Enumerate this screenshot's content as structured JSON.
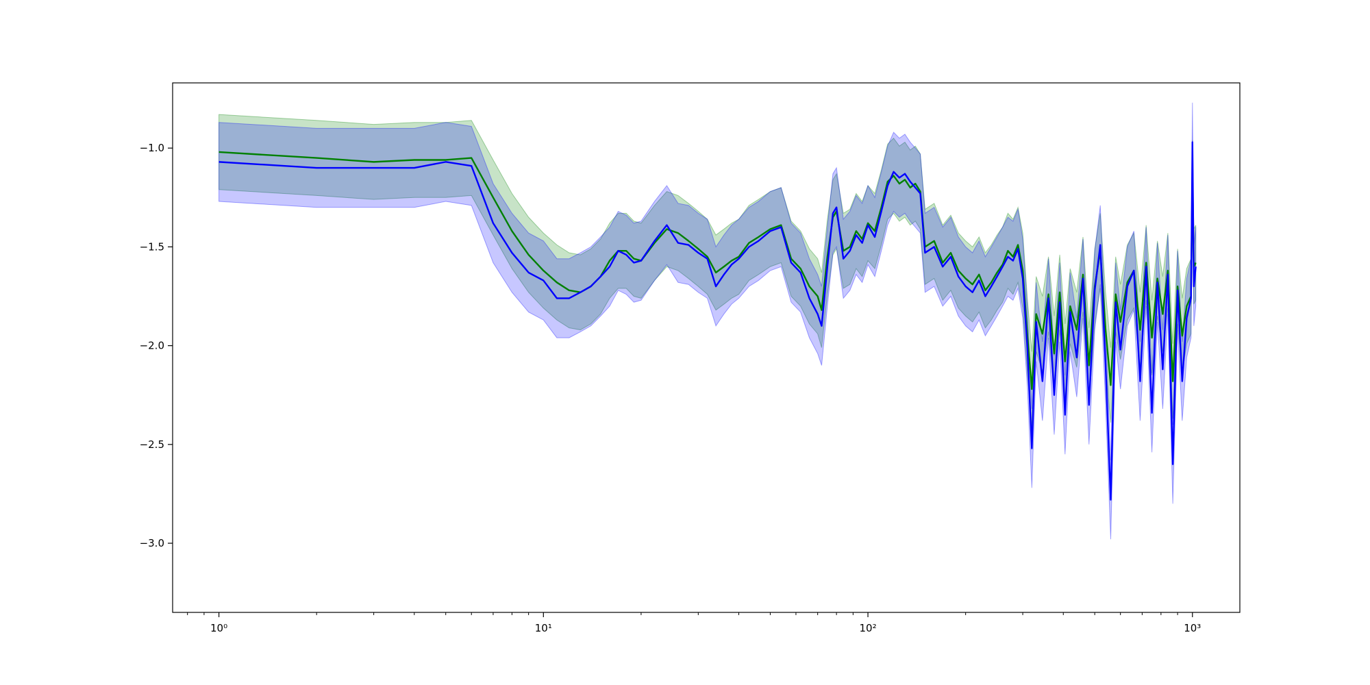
{
  "chart_data": {
    "type": "line",
    "title": "",
    "xlabel": "",
    "ylabel": "",
    "xscale": "log",
    "xlim": [
      0.72,
      1400
    ],
    "ylim": [
      -3.35,
      -0.67
    ],
    "grid": false,
    "legend": "none",
    "x_ticks": [
      {
        "value": 1,
        "label": "10⁰"
      },
      {
        "value": 10,
        "label": "10¹"
      },
      {
        "value": 100,
        "label": "10²"
      },
      {
        "value": 1000,
        "label": "10³"
      }
    ],
    "y_ticks": [
      {
        "value": -1.0,
        "label": "−1.0"
      },
      {
        "value": -1.5,
        "label": "−1.5"
      },
      {
        "value": -2.0,
        "label": "−2.0"
      },
      {
        "value": -2.5,
        "label": "−2.5"
      },
      {
        "value": -3.0,
        "label": "−3.0"
      }
    ],
    "series": [
      {
        "color": "#008000",
        "band_color": "#008000",
        "band_opacity": 0.22,
        "band_halfwidth": 0.19,
        "x": [
          1,
          2,
          3,
          4,
          5,
          6,
          7,
          8,
          9,
          10,
          11,
          12,
          13,
          14,
          15,
          16,
          17,
          18,
          19,
          20,
          22,
          24,
          26,
          28,
          30,
          32,
          34,
          36,
          38,
          40,
          43,
          46,
          50,
          54,
          58,
          62,
          66,
          70,
          72,
          75,
          78,
          80,
          84,
          88,
          92,
          96,
          100,
          105,
          110,
          115,
          120,
          125,
          130,
          135,
          140,
          145,
          150,
          160,
          170,
          180,
          190,
          200,
          210,
          220,
          230,
          240,
          250,
          260,
          270,
          280,
          290,
          300,
          310,
          320,
          330,
          345,
          360,
          375,
          390,
          405,
          420,
          440,
          460,
          480,
          500,
          520,
          540,
          560,
          580,
          600,
          630,
          660,
          690,
          720,
          750,
          780,
          810,
          840,
          870,
          900,
          930,
          960,
          990,
          1000,
          1010,
          1024
        ],
        "y": [
          -1.02,
          -1.05,
          -1.07,
          -1.06,
          -1.06,
          -1.05,
          -1.25,
          -1.42,
          -1.54,
          -1.62,
          -1.68,
          -1.72,
          -1.73,
          -1.7,
          -1.65,
          -1.57,
          -1.52,
          -1.52,
          -1.56,
          -1.57,
          -1.48,
          -1.41,
          -1.43,
          -1.47,
          -1.51,
          -1.55,
          -1.63,
          -1.6,
          -1.57,
          -1.55,
          -1.48,
          -1.45,
          -1.41,
          -1.39,
          -1.56,
          -1.61,
          -1.7,
          -1.75,
          -1.82,
          -1.55,
          -1.35,
          -1.32,
          -1.52,
          -1.5,
          -1.42,
          -1.46,
          -1.38,
          -1.42,
          -1.3,
          -1.17,
          -1.14,
          -1.18,
          -1.16,
          -1.2,
          -1.18,
          -1.22,
          -1.5,
          -1.47,
          -1.58,
          -1.53,
          -1.62,
          -1.66,
          -1.69,
          -1.64,
          -1.72,
          -1.68,
          -1.63,
          -1.59,
          -1.52,
          -1.55,
          -1.49,
          -1.62,
          -1.95,
          -2.22,
          -1.84,
          -1.94,
          -1.74,
          -2.04,
          -1.73,
          -2.08,
          -1.8,
          -1.92,
          -1.64,
          -2.1,
          -1.7,
          -1.52,
          -1.92,
          -2.2,
          -1.74,
          -1.88,
          -1.68,
          -1.62,
          -1.92,
          -1.58,
          -1.96,
          -1.66,
          -1.84,
          -1.62,
          -2.18,
          -1.7,
          -1.95,
          -1.8,
          -1.75,
          -1.15,
          -1.6,
          -1.58
        ]
      },
      {
        "color": "#0000ff",
        "band_color": "#0000ff",
        "band_opacity": 0.22,
        "band_halfwidth": 0.2,
        "x": [
          1,
          2,
          3,
          4,
          5,
          6,
          7,
          8,
          9,
          10,
          11,
          12,
          13,
          14,
          15,
          16,
          17,
          18,
          19,
          20,
          22,
          24,
          26,
          28,
          30,
          32,
          34,
          36,
          38,
          40,
          43,
          46,
          50,
          54,
          58,
          62,
          66,
          70,
          72,
          75,
          78,
          80,
          84,
          88,
          92,
          96,
          100,
          105,
          110,
          115,
          120,
          125,
          130,
          135,
          140,
          145,
          150,
          160,
          170,
          180,
          190,
          200,
          210,
          220,
          230,
          240,
          250,
          260,
          270,
          280,
          290,
          300,
          310,
          320,
          330,
          345,
          360,
          375,
          390,
          405,
          420,
          440,
          460,
          480,
          500,
          520,
          540,
          560,
          580,
          600,
          630,
          660,
          690,
          720,
          750,
          780,
          810,
          840,
          870,
          900,
          930,
          960,
          990,
          1000,
          1010,
          1024
        ],
        "y": [
          -1.07,
          -1.1,
          -1.1,
          -1.1,
          -1.07,
          -1.09,
          -1.38,
          -1.53,
          -1.63,
          -1.67,
          -1.76,
          -1.76,
          -1.73,
          -1.7,
          -1.65,
          -1.6,
          -1.52,
          -1.54,
          -1.58,
          -1.57,
          -1.47,
          -1.39,
          -1.48,
          -1.49,
          -1.53,
          -1.56,
          -1.7,
          -1.64,
          -1.59,
          -1.56,
          -1.5,
          -1.47,
          -1.42,
          -1.4,
          -1.58,
          -1.63,
          -1.76,
          -1.84,
          -1.9,
          -1.6,
          -1.33,
          -1.3,
          -1.56,
          -1.52,
          -1.44,
          -1.48,
          -1.39,
          -1.45,
          -1.32,
          -1.19,
          -1.12,
          -1.15,
          -1.13,
          -1.17,
          -1.2,
          -1.23,
          -1.53,
          -1.5,
          -1.6,
          -1.55,
          -1.65,
          -1.7,
          -1.73,
          -1.67,
          -1.75,
          -1.7,
          -1.65,
          -1.6,
          -1.55,
          -1.57,
          -1.51,
          -1.66,
          -2.01,
          -2.52,
          -1.88,
          -2.18,
          -1.76,
          -2.25,
          -1.78,
          -2.35,
          -1.83,
          -2.06,
          -1.66,
          -2.3,
          -1.72,
          -1.49,
          -2.1,
          -2.78,
          -1.78,
          -2.02,
          -1.7,
          -1.62,
          -2.18,
          -1.6,
          -2.34,
          -1.68,
          -2.12,
          -1.64,
          -2.6,
          -1.72,
          -2.18,
          -1.86,
          -1.76,
          -0.97,
          -1.7,
          -1.6
        ]
      }
    ]
  }
}
